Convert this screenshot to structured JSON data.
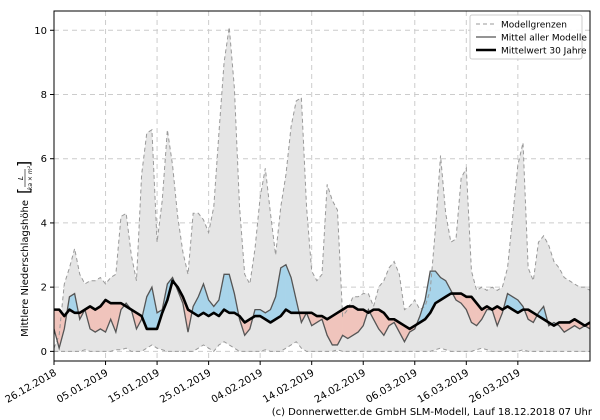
{
  "chart_data": {
    "type": "area",
    "ylabel": "Mittlere Niederschlagshöhe",
    "ylabel_unit_numerator": "L",
    "ylabel_unit_denominator": "ka × m²",
    "ylim": [
      -0.3,
      10.6
    ],
    "y_ticks": [
      0,
      2,
      4,
      6,
      8,
      10
    ],
    "x_tick_labels": [
      "26.12.2018",
      "05.01.2019",
      "15.01.2019",
      "25.01.2019",
      "04.02.2019",
      "14.02.2019",
      "24.02.2019",
      "06.03.2019",
      "16.03.2019",
      "26.03.2019"
    ],
    "x_start": "2018-12-26",
    "days": 105,
    "grid": true,
    "legend_position": "top-right",
    "legend": [
      {
        "label": "Modellgrenzen",
        "style": "dashed",
        "color": "#999999"
      },
      {
        "label": "Mittel aller Modelle",
        "style": "solid",
        "color": "#555555"
      },
      {
        "label": "Mittelwert 30 Jahre",
        "style": "bold",
        "color": "#000000"
      }
    ],
    "fill_above_color": "#a8d4ea",
    "fill_below_color": "#f0c4bc",
    "band_color": "#e5e5e5",
    "series": [
      {
        "name": "Modellgrenzen (oben)",
        "values": [
          0.1,
          0.5,
          2.1,
          2.6,
          3.2,
          2.4,
          2.1,
          2.2,
          2.2,
          2.3,
          2.1,
          2.3,
          2.4,
          4.2,
          4.3,
          3.0,
          2.2,
          5.5,
          6.8,
          6.9,
          3.4,
          4.7,
          6.9,
          5.8,
          4.2,
          3.1,
          2.4,
          4.3,
          4.3,
          4.1,
          3.7,
          4.5,
          6.8,
          9.0,
          10.1,
          8.2,
          4.5,
          2.4,
          2.1,
          3.2,
          4.8,
          5.7,
          4.3,
          3.0,
          4.5,
          5.5,
          7.0,
          7.8,
          7.9,
          4.5,
          2.5,
          2.2,
          2.4,
          5.2,
          4.7,
          4.4,
          1.1,
          1.3,
          1.7,
          1.7,
          1.8,
          1.8,
          1.4,
          2.0,
          2.2,
          2.6,
          2.8,
          2.4,
          1.3,
          1.4,
          1.6,
          1.3,
          1.4,
          1.9,
          3.8,
          6.1,
          4.3,
          3.4,
          3.5,
          5.4,
          5.7,
          2.5,
          1.9,
          2.0,
          1.9,
          2.0,
          1.9,
          2.0,
          2.6,
          4.2,
          5.8,
          6.5,
          2.6,
          2.2,
          3.4,
          3.6,
          3.3,
          2.8,
          2.6,
          2.3,
          2.2,
          2.1,
          2.0,
          2.0,
          1.9
        ]
      },
      {
        "name": "Modellgrenzen (unten)",
        "values": [
          0,
          0,
          0,
          0,
          0,
          0,
          0.05,
          0,
          0,
          0,
          0,
          0,
          0.05,
          0.05,
          0.1,
          0,
          0,
          0,
          0.1,
          0.2,
          0.1,
          0.05,
          0,
          0,
          0,
          0,
          0,
          0,
          0.1,
          0.2,
          0.1,
          0,
          0.2,
          0.3,
          0.2,
          0.1,
          0,
          0,
          0,
          0,
          0,
          0.05,
          0,
          0,
          0,
          0.1,
          0.2,
          0.3,
          0.1,
          0,
          0,
          0,
          0,
          0,
          0,
          0.05,
          0,
          0,
          0,
          0,
          0,
          0,
          0,
          0,
          0,
          0,
          0,
          0,
          0,
          0,
          0,
          0,
          0,
          0,
          0.05,
          0.1,
          0.05,
          0,
          0,
          0,
          0,
          0,
          0.05,
          0.1,
          0.05,
          0,
          0,
          0,
          0,
          0,
          0,
          0.05,
          0,
          0,
          0,
          0,
          0,
          0,
          0,
          0,
          0,
          0,
          0,
          0,
          0
        ]
      },
      {
        "name": "Mittel aller Modelle",
        "values": [
          0.7,
          0.1,
          0.7,
          1.7,
          1.8,
          1.0,
          1.3,
          0.7,
          0.6,
          0.7,
          0.6,
          1.0,
          0.6,
          1.3,
          1.5,
          1.3,
          0.7,
          1.0,
          1.7,
          2.0,
          1.2,
          1.3,
          2.1,
          2.3,
          1.9,
          1.5,
          0.6,
          1.4,
          1.7,
          2.1,
          1.6,
          1.4,
          1.6,
          2.4,
          2.4,
          1.8,
          1.0,
          0.5,
          0.7,
          1.3,
          1.3,
          1.2,
          1.3,
          1.7,
          2.6,
          2.7,
          2.3,
          1.6,
          0.9,
          1.2,
          0.8,
          0.9,
          1.0,
          0.5,
          0.2,
          0.2,
          0.5,
          0.4,
          0.5,
          0.6,
          0.8,
          1.3,
          1.0,
          0.7,
          0.5,
          0.8,
          0.9,
          0.6,
          0.3,
          0.6,
          0.7,
          1.1,
          1.6,
          2.5,
          2.5,
          2.3,
          2.2,
          1.9,
          1.6,
          1.5,
          1.3,
          0.9,
          0.8,
          1.0,
          1.3,
          1.3,
          0.8,
          1.2,
          1.8,
          1.7,
          1.6,
          1.4,
          1.0,
          0.9,
          1.2,
          1.4,
          0.8,
          0.9,
          0.8,
          0.6,
          0.7,
          0.8,
          0.7,
          0.8,
          0.7
        ]
      },
      {
        "name": "Mittelwert 30 Jahre",
        "values": [
          1.3,
          1.3,
          1.1,
          1.3,
          1.2,
          1.2,
          1.3,
          1.4,
          1.3,
          1.4,
          1.6,
          1.5,
          1.5,
          1.5,
          1.4,
          1.3,
          1.2,
          1.1,
          0.7,
          0.7,
          0.7,
          1.2,
          1.6,
          2.2,
          2.0,
          1.7,
          1.3,
          1.2,
          1.1,
          1.2,
          1.1,
          1.2,
          1.1,
          1.3,
          1.2,
          1.2,
          1.1,
          0.9,
          1.0,
          1.1,
          1.1,
          1.0,
          0.9,
          1.0,
          1.1,
          1.3,
          1.2,
          1.2,
          1.2,
          1.2,
          1.2,
          1.1,
          1.1,
          1.0,
          1.1,
          1.2,
          1.3,
          1.4,
          1.4,
          1.3,
          1.3,
          1.2,
          1.3,
          1.3,
          1.2,
          1.0,
          1.0,
          0.9,
          0.8,
          0.7,
          0.8,
          0.9,
          1.0,
          1.2,
          1.5,
          1.6,
          1.7,
          1.8,
          1.8,
          1.8,
          1.7,
          1.7,
          1.5,
          1.3,
          1.4,
          1.3,
          1.4,
          1.3,
          1.4,
          1.3,
          1.2,
          1.3,
          1.3,
          1.2,
          1.1,
          1.0,
          0.9,
          0.8,
          0.9,
          0.9,
          0.9,
          1.0,
          0.9,
          0.8,
          0.9
        ]
      }
    ]
  },
  "footer": {
    "copyright": "(c) Donnerwetter.de GmbH SLM-Modell, Lauf 18.12.2018 07 Uhr"
  }
}
